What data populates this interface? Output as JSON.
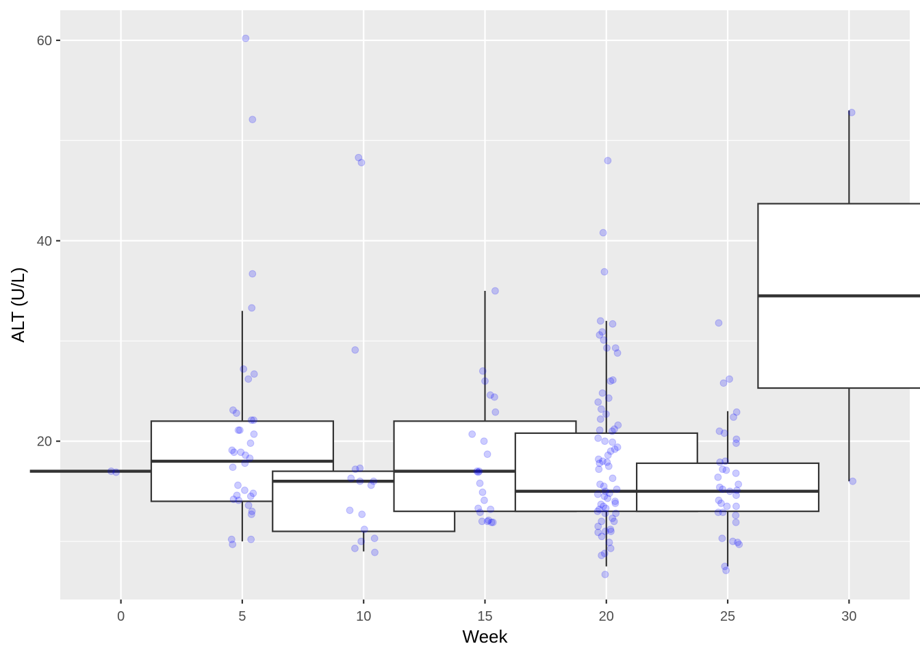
{
  "chart_data": {
    "type": "boxplot",
    "title": "",
    "xlabel": "Week",
    "ylabel": "ALT (U/L)",
    "xlim": [
      -2.5,
      32.5
    ],
    "ylim": [
      4.2,
      63.0
    ],
    "x_breaks": [
      0,
      5,
      10,
      15,
      20,
      25,
      30
    ],
    "x_tick_labels": [
      "0",
      "5",
      "10",
      "15",
      "20",
      "25",
      "30"
    ],
    "y_breaks": [
      20,
      40,
      60
    ],
    "y_tick_labels": [
      "20",
      "40",
      "60"
    ],
    "grid": true,
    "background": "#ebebeb",
    "grid_color": "#ffffff",
    "box_fill": "#ffffff",
    "box_stroke": "#333333",
    "point_color": "#0000ff",
    "point_opacity": 0.2,
    "boxes": [
      {
        "week": 0,
        "whisker_low": 17.0,
        "q1": 17.0,
        "median": 17.0,
        "q3": 17.0,
        "whisker_high": 17.0
      },
      {
        "week": 5,
        "whisker_low": 10.0,
        "q1": 14.0,
        "median": 18.0,
        "q3": 22.0,
        "whisker_high": 33.0
      },
      {
        "week": 10,
        "whisker_low": 9.0,
        "q1": 11.0,
        "median": 16.0,
        "q3": 17.0,
        "whisker_high": 17.0
      },
      {
        "week": 15,
        "whisker_low": 13.0,
        "q1": 13.0,
        "median": 17.0,
        "q3": 22.0,
        "whisker_high": 35.0
      },
      {
        "week": 20,
        "whisker_low": 7.5,
        "q1": 13.0,
        "median": 15.0,
        "q3": 20.8,
        "whisker_high": 32.0
      },
      {
        "week": 25,
        "whisker_low": 7.5,
        "q1": 13.0,
        "median": 15.0,
        "q3": 17.8,
        "whisker_high": 23.0
      },
      {
        "week": 30,
        "whisker_low": 16.0,
        "q1": 25.3,
        "median": 34.5,
        "q3": 43.7,
        "whisker_high": 53.0
      }
    ],
    "points": [
      {
        "week": -0.4,
        "alt": 17.0
      },
      {
        "week": -0.2,
        "alt": 16.9
      },
      {
        "week": 5.14,
        "alt": 60.2
      },
      {
        "week": 5.42,
        "alt": 52.1
      },
      {
        "week": 5.42,
        "alt": 36.7
      },
      {
        "week": 5.39,
        "alt": 33.3
      },
      {
        "week": 5.05,
        "alt": 27.2
      },
      {
        "week": 5.49,
        "alt": 26.7
      },
      {
        "week": 5.25,
        "alt": 26.2
      },
      {
        "week": 4.62,
        "alt": 23.1
      },
      {
        "week": 4.76,
        "alt": 22.8
      },
      {
        "week": 5.38,
        "alt": 22.1
      },
      {
        "week": 5.47,
        "alt": 22.1
      },
      {
        "week": 4.84,
        "alt": 21.1
      },
      {
        "week": 4.9,
        "alt": 21.1
      },
      {
        "week": 5.48,
        "alt": 20.7
      },
      {
        "week": 5.34,
        "alt": 19.8
      },
      {
        "week": 4.58,
        "alt": 19.1
      },
      {
        "week": 4.66,
        "alt": 18.9
      },
      {
        "week": 4.94,
        "alt": 18.9
      },
      {
        "week": 5.13,
        "alt": 18.6
      },
      {
        "week": 5.31,
        "alt": 18.3
      },
      {
        "week": 5.11,
        "alt": 17.8
      },
      {
        "week": 4.61,
        "alt": 17.4
      },
      {
        "week": 4.82,
        "alt": 15.6
      },
      {
        "week": 5.1,
        "alt": 15.1
      },
      {
        "week": 5.45,
        "alt": 14.8
      },
      {
        "week": 4.78,
        "alt": 14.6
      },
      {
        "week": 5.35,
        "alt": 14.5
      },
      {
        "week": 4.64,
        "alt": 14.2
      },
      {
        "week": 4.85,
        "alt": 14.1
      },
      {
        "week": 5.26,
        "alt": 13.6
      },
      {
        "week": 5.4,
        "alt": 13.0
      },
      {
        "week": 5.38,
        "alt": 12.7
      },
      {
        "week": 4.56,
        "alt": 10.2
      },
      {
        "week": 5.36,
        "alt": 10.2
      },
      {
        "week": 4.6,
        "alt": 9.7
      },
      {
        "week": 9.79,
        "alt": 48.3
      },
      {
        "week": 9.91,
        "alt": 47.8
      },
      {
        "week": 9.65,
        "alt": 29.1
      },
      {
        "week": 9.66,
        "alt": 17.2
      },
      {
        "week": 9.85,
        "alt": 17.3
      },
      {
        "week": 9.48,
        "alt": 16.3
      },
      {
        "week": 9.85,
        "alt": 16.0
      },
      {
        "week": 10.31,
        "alt": 15.6
      },
      {
        "week": 10.41,
        "alt": 16.0
      },
      {
        "week": 9.43,
        "alt": 13.1
      },
      {
        "week": 9.93,
        "alt": 12.7
      },
      {
        "week": 10.03,
        "alt": 11.2
      },
      {
        "week": 10.45,
        "alt": 10.3
      },
      {
        "week": 9.9,
        "alt": 10.0
      },
      {
        "week": 9.64,
        "alt": 9.3
      },
      {
        "week": 10.46,
        "alt": 8.9
      },
      {
        "week": 15.42,
        "alt": 35.0
      },
      {
        "week": 14.91,
        "alt": 27.0
      },
      {
        "week": 15.0,
        "alt": 26.0
      },
      {
        "week": 15.22,
        "alt": 24.6
      },
      {
        "week": 15.39,
        "alt": 24.4
      },
      {
        "week": 15.43,
        "alt": 22.9
      },
      {
        "week": 14.47,
        "alt": 20.7
      },
      {
        "week": 14.96,
        "alt": 20.0
      },
      {
        "week": 15.1,
        "alt": 18.7
      },
      {
        "week": 14.67,
        "alt": 17.0
      },
      {
        "week": 14.76,
        "alt": 17.0
      },
      {
        "week": 14.72,
        "alt": 16.9
      },
      {
        "week": 14.79,
        "alt": 15.8
      },
      {
        "week": 14.9,
        "alt": 14.9
      },
      {
        "week": 14.97,
        "alt": 14.1
      },
      {
        "week": 14.72,
        "alt": 13.3
      },
      {
        "week": 15.23,
        "alt": 13.2
      },
      {
        "week": 14.8,
        "alt": 12.9
      },
      {
        "week": 14.88,
        "alt": 12.0
      },
      {
        "week": 15.1,
        "alt": 12.0
      },
      {
        "week": 15.27,
        "alt": 11.9
      },
      {
        "week": 15.33,
        "alt": 11.9
      },
      {
        "week": 15.15,
        "alt": 12.1
      },
      {
        "week": 20.06,
        "alt": 48.0
      },
      {
        "week": 19.87,
        "alt": 40.8
      },
      {
        "week": 19.92,
        "alt": 36.9
      },
      {
        "week": 19.76,
        "alt": 32.0
      },
      {
        "week": 20.26,
        "alt": 31.7
      },
      {
        "week": 19.83,
        "alt": 30.9
      },
      {
        "week": 19.72,
        "alt": 30.6
      },
      {
        "week": 19.89,
        "alt": 30.1
      },
      {
        "week": 20.38,
        "alt": 29.3
      },
      {
        "week": 20.02,
        "alt": 29.3
      },
      {
        "week": 20.46,
        "alt": 28.8
      },
      {
        "week": 20.17,
        "alt": 26.0
      },
      {
        "week": 20.27,
        "alt": 26.1
      },
      {
        "week": 19.84,
        "alt": 24.8
      },
      {
        "week": 20.1,
        "alt": 24.3
      },
      {
        "week": 19.66,
        "alt": 23.9
      },
      {
        "week": 19.79,
        "alt": 23.2
      },
      {
        "week": 19.99,
        "alt": 22.7
      },
      {
        "week": 19.76,
        "alt": 22.2
      },
      {
        "week": 20.48,
        "alt": 21.6
      },
      {
        "week": 20.33,
        "alt": 21.2
      },
      {
        "week": 19.73,
        "alt": 21.1
      },
      {
        "week": 20.24,
        "alt": 21.0
      },
      {
        "week": 19.66,
        "alt": 20.3
      },
      {
        "week": 19.94,
        "alt": 20.0
      },
      {
        "week": 20.25,
        "alt": 19.9
      },
      {
        "week": 20.46,
        "alt": 19.4
      },
      {
        "week": 20.35,
        "alt": 19.2
      },
      {
        "week": 20.18,
        "alt": 19.0
      },
      {
        "week": 20.07,
        "alt": 18.6
      },
      {
        "week": 19.68,
        "alt": 18.2
      },
      {
        "week": 19.85,
        "alt": 18.0
      },
      {
        "week": 19.72,
        "alt": 17.8
      },
      {
        "week": 20.03,
        "alt": 17.9
      },
      {
        "week": 19.69,
        "alt": 17.2
      },
      {
        "week": 20.26,
        "alt": 16.3
      },
      {
        "week": 19.74,
        "alt": 15.7
      },
      {
        "week": 20.43,
        "alt": 15.2
      },
      {
        "week": 19.96,
        "alt": 15.0
      },
      {
        "week": 20.13,
        "alt": 14.8
      },
      {
        "week": 19.65,
        "alt": 14.7
      },
      {
        "week": 19.92,
        "alt": 14.5
      },
      {
        "week": 20.05,
        "alt": 14.3
      },
      {
        "week": 20.36,
        "alt": 14.0
      },
      {
        "week": 20.37,
        "alt": 13.8
      },
      {
        "week": 19.78,
        "alt": 13.7
      },
      {
        "week": 19.98,
        "alt": 13.3
      },
      {
        "week": 19.71,
        "alt": 13.2
      },
      {
        "week": 19.64,
        "alt": 13.0
      },
      {
        "week": 19.95,
        "alt": 12.8
      },
      {
        "week": 20.39,
        "alt": 12.8
      },
      {
        "week": 20.25,
        "alt": 12.3
      },
      {
        "week": 20.32,
        "alt": 12.0
      },
      {
        "week": 19.8,
        "alt": 12.0
      },
      {
        "week": 19.66,
        "alt": 11.5
      },
      {
        "week": 20.17,
        "alt": 11.2
      },
      {
        "week": 19.96,
        "alt": 11.0
      },
      {
        "week": 20.19,
        "alt": 11.0
      },
      {
        "week": 19.66,
        "alt": 10.9
      },
      {
        "week": 19.81,
        "alt": 10.5
      },
      {
        "week": 20.12,
        "alt": 9.9
      },
      {
        "week": 20.18,
        "alt": 9.3
      },
      {
        "week": 19.93,
        "alt": 8.8
      },
      {
        "week": 19.8,
        "alt": 8.6
      },
      {
        "week": 19.95,
        "alt": 6.7
      },
      {
        "week": 19.88,
        "alt": 13.5
      },
      {
        "week": 20.1,
        "alt": 17.5
      },
      {
        "week": 19.9,
        "alt": 15.5
      },
      {
        "week": 24.63,
        "alt": 31.8
      },
      {
        "week": 25.07,
        "alt": 26.2
      },
      {
        "week": 24.83,
        "alt": 25.8
      },
      {
        "week": 25.37,
        "alt": 22.9
      },
      {
        "week": 25.24,
        "alt": 22.4
      },
      {
        "week": 24.66,
        "alt": 21.0
      },
      {
        "week": 24.86,
        "alt": 20.8
      },
      {
        "week": 25.36,
        "alt": 20.2
      },
      {
        "week": 25.35,
        "alt": 19.8
      },
      {
        "week": 24.68,
        "alt": 17.9
      },
      {
        "week": 24.9,
        "alt": 18.0
      },
      {
        "week": 24.79,
        "alt": 17.2
      },
      {
        "week": 24.94,
        "alt": 17.1
      },
      {
        "week": 25.34,
        "alt": 16.8
      },
      {
        "week": 24.6,
        "alt": 16.4
      },
      {
        "week": 25.44,
        "alt": 15.7
      },
      {
        "week": 24.67,
        "alt": 15.4
      },
      {
        "week": 24.79,
        "alt": 15.2
      },
      {
        "week": 25.09,
        "alt": 15.0
      },
      {
        "week": 25.38,
        "alt": 15.1
      },
      {
        "week": 24.63,
        "alt": 14.1
      },
      {
        "week": 25.35,
        "alt": 14.6
      },
      {
        "week": 24.73,
        "alt": 13.8
      },
      {
        "week": 24.97,
        "alt": 13.5
      },
      {
        "week": 25.35,
        "alt": 13.5
      },
      {
        "week": 24.61,
        "alt": 12.9
      },
      {
        "week": 24.8,
        "alt": 12.9
      },
      {
        "week": 25.33,
        "alt": 12.6
      },
      {
        "week": 25.34,
        "alt": 11.9
      },
      {
        "week": 24.77,
        "alt": 10.3
      },
      {
        "week": 25.21,
        "alt": 10.0
      },
      {
        "week": 25.41,
        "alt": 9.9
      },
      {
        "week": 25.47,
        "alt": 9.7
      },
      {
        "week": 24.88,
        "alt": 7.5
      },
      {
        "week": 24.93,
        "alt": 7.1
      },
      {
        "week": 30.11,
        "alt": 52.8
      },
      {
        "week": 30.15,
        "alt": 16.0
      }
    ]
  }
}
